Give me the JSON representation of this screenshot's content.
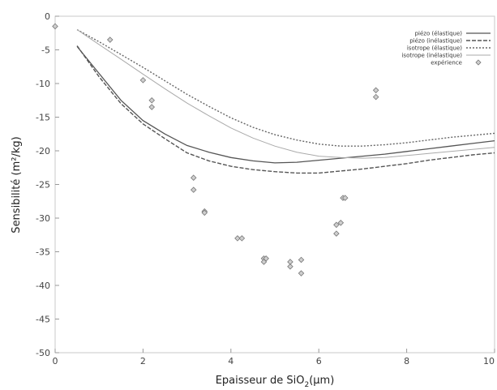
{
  "chart_data": {
    "type": "line",
    "title": "",
    "xlabel": "Epaisseur de SiO",
    "xlabel_sub": "2",
    "xlabel_unit": "(µm)",
    "ylabel": "Sensibilité  (m²/kg)",
    "xlim": [
      0,
      10
    ],
    "ylim": [
      -50,
      0
    ],
    "x_ticks": [
      0,
      2,
      4,
      6,
      8,
      10
    ],
    "y_ticks": [
      0,
      -5,
      -10,
      -15,
      -20,
      -25,
      -30,
      -35,
      -40,
      -45,
      -50
    ],
    "grid": false,
    "legend_position": "top-right",
    "series": [
      {
        "name": "piézo (élastique)",
        "style": "solid",
        "color": "#555555",
        "x": [
          0.5,
          1.0,
          1.5,
          2.0,
          2.5,
          3.0,
          3.5,
          4.0,
          4.5,
          5.0,
          5.5,
          6.0,
          6.5,
          7.0,
          7.5,
          8.0,
          8.5,
          9.0,
          9.5,
          10.0
        ],
        "y": [
          -4.5,
          -8.5,
          -12.5,
          -15.5,
          -17.5,
          -19.2,
          -20.2,
          -21.0,
          -21.5,
          -21.8,
          -21.7,
          -21.4,
          -21.1,
          -20.8,
          -20.5,
          -20.1,
          -19.7,
          -19.3,
          -18.9,
          -18.5
        ]
      },
      {
        "name": "piézo (inélastique)",
        "style": "dashed",
        "color": "#555555",
        "x": [
          0.5,
          1.0,
          1.5,
          2.0,
          2.5,
          3.0,
          3.5,
          4.0,
          4.5,
          5.0,
          5.5,
          6.0,
          6.5,
          7.0,
          7.5,
          8.0,
          8.5,
          9.0,
          9.5,
          10.0
        ],
        "y": [
          -4.4,
          -9.0,
          -13.0,
          -16.0,
          -18.2,
          -20.3,
          -21.5,
          -22.3,
          -22.8,
          -23.1,
          -23.3,
          -23.3,
          -23.0,
          -22.7,
          -22.3,
          -21.9,
          -21.4,
          -21.0,
          -20.6,
          -20.3
        ]
      },
      {
        "name": "isotrope (élastique)",
        "style": "dotted",
        "color": "#666666",
        "x": [
          0.5,
          1.0,
          1.5,
          2.0,
          2.5,
          3.0,
          3.5,
          4.0,
          4.5,
          5.0,
          5.5,
          6.0,
          6.5,
          7.0,
          7.5,
          8.0,
          8.5,
          9.0,
          9.5,
          10.0
        ],
        "y": [
          -2.0,
          -3.8,
          -5.7,
          -7.6,
          -9.6,
          -11.6,
          -13.4,
          -15.1,
          -16.5,
          -17.6,
          -18.4,
          -19.0,
          -19.3,
          -19.3,
          -19.1,
          -18.8,
          -18.4,
          -18.0,
          -17.7,
          -17.4
        ]
      },
      {
        "name": "isotrope (inélastique)",
        "style": "thin",
        "color": "#aaaaaa",
        "x": [
          0.5,
          1.0,
          1.5,
          2.0,
          2.5,
          3.0,
          3.5,
          4.0,
          4.5,
          5.0,
          5.5,
          6.0,
          6.5,
          7.0,
          7.5,
          8.0,
          8.5,
          9.0,
          9.5,
          10.0
        ],
        "y": [
          -2.0,
          -4.2,
          -6.4,
          -8.6,
          -10.8,
          -12.9,
          -14.8,
          -16.6,
          -18.1,
          -19.3,
          -20.2,
          -20.8,
          -21.0,
          -21.1,
          -21.0,
          -20.7,
          -20.4,
          -20.1,
          -19.8,
          -19.5
        ]
      },
      {
        "name": "expérience",
        "style": "markers",
        "color": "#888888",
        "x": [
          0.0,
          1.25,
          2.0,
          2.2,
          2.2,
          3.15,
          3.15,
          3.4,
          3.4,
          4.15,
          4.25,
          4.75,
          4.75,
          4.8,
          5.35,
          5.35,
          5.6,
          5.6,
          6.4,
          6.4,
          6.5,
          6.55,
          6.6,
          7.3,
          7.3
        ],
        "y": [
          -1.5,
          -3.5,
          -9.5,
          -12.5,
          -13.5,
          -24.0,
          -25.8,
          -29.0,
          -29.2,
          -33.0,
          -33.0,
          -36.0,
          -36.5,
          -36.0,
          -36.5,
          -37.2,
          -36.2,
          -38.2,
          -31.0,
          -32.3,
          -30.7,
          -27.0,
          -27.0,
          -11.0,
          -12.0
        ]
      }
    ]
  }
}
